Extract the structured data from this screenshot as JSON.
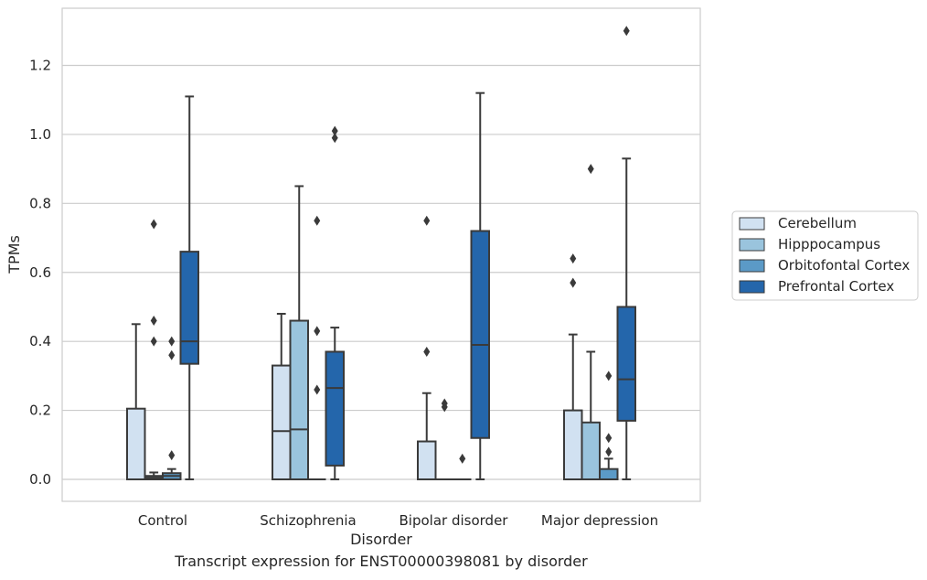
{
  "caption": "Transcript expression for ENST00000398081 by disorder",
  "chart_data": {
    "type": "boxplot",
    "xlabel": "Disorder",
    "ylabel": "TPMs",
    "ylim": [
      -0.065,
      1.37
    ],
    "yticks": [
      0.0,
      0.2,
      0.4,
      0.6,
      0.8,
      1.0,
      1.2
    ],
    "ytick_labels": [
      "0.0",
      "0.2",
      "0.4",
      "0.6",
      "0.8",
      "1.0",
      "1.2"
    ],
    "grid": "horizontal",
    "legend_placement": "center-right outside",
    "categories": [
      "Control",
      "Schizophrenia",
      "Bipolar disorder",
      "Major depression"
    ],
    "series": [
      {
        "name": "Cerebellum",
        "color": "#d1e1f1",
        "boxes": [
          {
            "q1": 0.0,
            "median": 0.0,
            "q3": 0.205,
            "whisker_low": 0.0,
            "whisker_high": 0.45,
            "outliers": []
          },
          {
            "q1": 0.0,
            "median": 0.14,
            "q3": 0.33,
            "whisker_low": 0.0,
            "whisker_high": 0.48,
            "outliers": []
          },
          {
            "q1": 0.0,
            "median": 0.0,
            "q3": 0.11,
            "whisker_low": 0.0,
            "whisker_high": 0.25,
            "outliers": [
              0.37,
              0.75
            ]
          },
          {
            "q1": 0.0,
            "median": 0.0,
            "q3": 0.2,
            "whisker_low": 0.0,
            "whisker_high": 0.42,
            "outliers": [
              0.57,
              0.64
            ]
          }
        ]
      },
      {
        "name": "Hipppocampus",
        "color": "#9ac4dd",
        "boxes": [
          {
            "q1": 0.0,
            "median": 0.005,
            "q3": 0.01,
            "whisker_low": 0.0,
            "whisker_high": 0.02,
            "outliers": [
              0.4,
              0.46,
              0.74
            ]
          },
          {
            "q1": 0.0,
            "median": 0.145,
            "q3": 0.46,
            "whisker_low": 0.0,
            "whisker_high": 0.85,
            "outliers": []
          },
          {
            "q1": 0.0,
            "median": 0.0,
            "q3": 0.0,
            "whisker_low": 0.0,
            "whisker_high": 0.0,
            "outliers": [
              0.21,
              0.22
            ]
          },
          {
            "q1": 0.0,
            "median": 0.0,
            "q3": 0.165,
            "whisker_low": 0.0,
            "whisker_high": 0.37,
            "outliers": [
              0.9
            ]
          }
        ]
      },
      {
        "name": "Orbitofontal Cortex",
        "color": "#5b9ac7",
        "boxes": [
          {
            "q1": 0.0,
            "median": 0.01,
            "q3": 0.018,
            "whisker_low": 0.0,
            "whisker_high": 0.03,
            "outliers": [
              0.07,
              0.36,
              0.4
            ]
          },
          {
            "q1": 0.0,
            "median": 0.0,
            "q3": 0.0,
            "whisker_low": 0.0,
            "whisker_high": 0.0,
            "outliers": [
              0.26,
              0.43,
              0.75
            ]
          },
          {
            "q1": 0.0,
            "median": 0.0,
            "q3": 0.0,
            "whisker_low": 0.0,
            "whisker_high": 0.0,
            "outliers": [
              0.06
            ]
          },
          {
            "q1": 0.0,
            "median": 0.0,
            "q3": 0.03,
            "whisker_low": 0.0,
            "whisker_high": 0.06,
            "outliers": [
              0.08,
              0.12,
              0.3
            ]
          }
        ]
      },
      {
        "name": "Prefrontal Cortex",
        "color": "#2466ab",
        "boxes": [
          {
            "q1": 0.335,
            "median": 0.4,
            "q3": 0.66,
            "whisker_low": 0.0,
            "whisker_high": 1.11,
            "outliers": []
          },
          {
            "q1": 0.04,
            "median": 0.265,
            "q3": 0.37,
            "whisker_low": 0.0,
            "whisker_high": 0.44,
            "outliers": [
              0.99,
              1.01
            ]
          },
          {
            "q1": 0.12,
            "median": 0.39,
            "q3": 0.72,
            "whisker_low": 0.0,
            "whisker_high": 1.12,
            "outliers": []
          },
          {
            "q1": 0.17,
            "median": 0.29,
            "q3": 0.5,
            "whisker_low": 0.0,
            "whisker_high": 0.93,
            "outliers": [
              1.3
            ]
          }
        ]
      }
    ]
  }
}
